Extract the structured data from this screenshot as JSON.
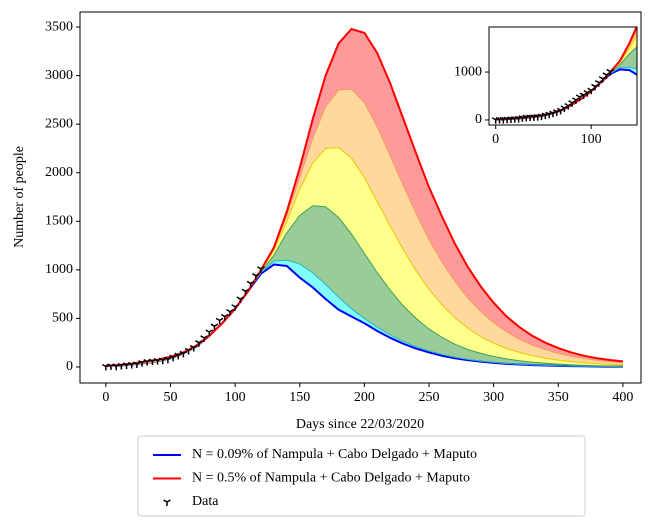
{
  "chart_data": [
    {
      "type": "line",
      "xlabel": "Days since 22/03/2020",
      "ylabel": "Number of people",
      "xlim": [
        -20,
        414
      ],
      "ylim": [
        -165,
        3655
      ],
      "xticks": [
        0,
        50,
        100,
        150,
        200,
        250,
        300,
        350,
        400
      ],
      "yticks": [
        0,
        500,
        1000,
        1500,
        2000,
        2500,
        3000,
        3500
      ],
      "legend": "below",
      "x": [
        0,
        10,
        20,
        30,
        40,
        50,
        60,
        70,
        80,
        90,
        100,
        110,
        120,
        130,
        140,
        150,
        160,
        170,
        180,
        190,
        200,
        210,
        220,
        230,
        240,
        250,
        260,
        270,
        280,
        290,
        300,
        310,
        320,
        330,
        340,
        350,
        360,
        370,
        380,
        390,
        400
      ],
      "series": [
        {
          "name": "N = 0.09% of Nampula + Cabo Delgado + Maputo",
          "color": "#0000ff",
          "values": [
            10,
            15,
            25,
            40,
            60,
            90,
            140,
            210,
            320,
            450,
            600,
            780,
            960,
            1055,
            1040,
            920,
            820,
            700,
            590,
            520,
            450,
            370,
            300,
            240,
            190,
            150,
            115,
            90,
            70,
            55,
            42,
            32,
            25,
            19,
            15,
            11,
            9,
            7,
            5,
            4,
            3
          ]
        },
        {
          "color": "#2ab7b7",
          "fill": "#80ffff",
          "values": [
            10,
            15,
            25,
            40,
            60,
            90,
            140,
            210,
            320,
            450,
            600,
            780,
            970,
            1090,
            1100,
            1060,
            970,
            850,
            720,
            600,
            500,
            410,
            330,
            265,
            210,
            165,
            130,
            100,
            78,
            60,
            47,
            36,
            28,
            22,
            17,
            13,
            10,
            8,
            6,
            5,
            4
          ]
        },
        {
          "color": "#3aa15a",
          "fill": "#99cc99",
          "values": [
            10,
            15,
            25,
            40,
            60,
            90,
            140,
            210,
            320,
            450,
            600,
            780,
            980,
            1150,
            1380,
            1560,
            1660,
            1650,
            1540,
            1370,
            1170,
            970,
            790,
            630,
            500,
            390,
            305,
            235,
            180,
            140,
            108,
            83,
            64,
            49,
            38,
            29,
            22,
            17,
            13,
            10,
            8
          ]
        },
        {
          "color": "#e8c800",
          "fill": "#ffff8c",
          "values": [
            10,
            15,
            25,
            40,
            60,
            90,
            140,
            210,
            320,
            450,
            600,
            780,
            990,
            1200,
            1500,
            1830,
            2100,
            2250,
            2260,
            2150,
            1950,
            1700,
            1450,
            1210,
            990,
            800,
            640,
            505,
            400,
            310,
            245,
            190,
            150,
            115,
            90,
            70,
            55,
            43,
            34,
            27,
            21
          ]
        },
        {
          "color": "#f2a05a",
          "fill": "#ffd89e",
          "values": [
            10,
            15,
            25,
            40,
            60,
            90,
            140,
            210,
            320,
            450,
            600,
            780,
            1000,
            1220,
            1560,
            1950,
            2350,
            2680,
            2850,
            2860,
            2720,
            2470,
            2170,
            1870,
            1580,
            1310,
            1080,
            880,
            710,
            570,
            455,
            360,
            285,
            225,
            178,
            140,
            110,
            87,
            68,
            54,
            43
          ]
        },
        {
          "name": "N = 0.5% of Nampula + Cabo Delgado + Maputo",
          "color": "#ff0000",
          "fill": "#ff9a9a",
          "values": [
            15,
            20,
            35,
            55,
            75,
            105,
            150,
            220,
            320,
            450,
            600,
            780,
            1000,
            1230,
            1600,
            2050,
            2550,
            3000,
            3330,
            3480,
            3440,
            3230,
            2920,
            2560,
            2200,
            1850,
            1550,
            1270,
            1030,
            830,
            660,
            520,
            410,
            320,
            250,
            195,
            150,
            115,
            90,
            72,
            58
          ]
        },
        {
          "name": "Data",
          "color": "#000000",
          "marker": "tri_down",
          "x": [
            0,
            4,
            8,
            12,
            16,
            20,
            24,
            28,
            32,
            36,
            40,
            44,
            48,
            52,
            56,
            60,
            64,
            68,
            72,
            76,
            80,
            84,
            88,
            92,
            96,
            100,
            104,
            108,
            112,
            116,
            120
          ],
          "values": [
            5,
            10,
            8,
            15,
            20,
            25,
            30,
            45,
            55,
            60,
            65,
            70,
            80,
            100,
            120,
            140,
            170,
            200,
            250,
            300,
            360,
            420,
            480,
            520,
            570,
            620,
            700,
            780,
            860,
            940,
            1010
          ]
        }
      ]
    },
    {
      "type": "inset",
      "xlim": [
        -7,
        148
      ],
      "ylim": [
        -105,
        1940
      ],
      "xticks": [
        0,
        100
      ],
      "yticks": [
        0,
        1000
      ]
    }
  ]
}
